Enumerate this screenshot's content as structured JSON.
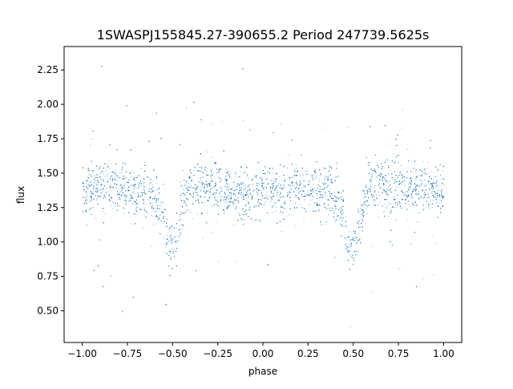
{
  "chart_data": {
    "type": "scatter",
    "title": "1SWASPJ155845.27-390655.2 Period 247739.5625s",
    "xlabel": "phase",
    "ylabel": "flux",
    "xlim": [
      -1.1,
      1.1
    ],
    "ylim": [
      0.27,
      2.42
    ],
    "x_ticks": [
      -1.0,
      -0.75,
      -0.5,
      -0.25,
      0.0,
      0.25,
      0.5,
      0.75,
      1.0
    ],
    "x_tick_labels": [
      "−1.00",
      "−0.75",
      "−0.50",
      "−0.25",
      "0.00",
      "0.25",
      "0.50",
      "0.75",
      "1.00"
    ],
    "y_ticks": [
      0.5,
      0.75,
      1.0,
      1.25,
      1.5,
      1.75,
      2.0,
      2.25
    ],
    "y_tick_labels": [
      "0.50",
      "0.75",
      "1.00",
      "1.25",
      "1.50",
      "1.75",
      "2.00",
      "2.25"
    ],
    "grid": false,
    "legend": "none",
    "color": "#1f77b4",
    "series": [
      {
        "x": [
          -1.0,
          -0.95,
          -0.9,
          -0.85,
          -0.8,
          -0.75,
          -0.7,
          -0.65,
          -0.6,
          -0.56,
          -0.54,
          -0.52,
          -0.5,
          -0.48,
          -0.46,
          -0.44,
          -0.42,
          -0.4,
          -0.35,
          -0.3,
          -0.25,
          -0.2,
          -0.15,
          -0.1,
          -0.05,
          0.0,
          0.05,
          0.1,
          0.15,
          0.2,
          0.25,
          0.3,
          0.35,
          0.4,
          0.44,
          0.46,
          0.48,
          0.5,
          0.52,
          0.54,
          0.56,
          0.58,
          0.6,
          0.65,
          0.7,
          0.75,
          0.8,
          0.85,
          0.9,
          0.95,
          1.0
        ],
        "y": [
          1.38,
          1.39,
          1.4,
          1.42,
          1.41,
          1.39,
          1.38,
          1.37,
          1.35,
          1.2,
          1.08,
          1.0,
          0.97,
          1.02,
          1.15,
          1.3,
          1.38,
          1.4,
          1.41,
          1.41,
          1.4,
          1.39,
          1.38,
          1.37,
          1.37,
          1.37,
          1.37,
          1.38,
          1.39,
          1.41,
          1.4,
          1.39,
          1.38,
          1.35,
          1.2,
          1.06,
          0.99,
          0.97,
          1.04,
          1.2,
          1.32,
          1.38,
          1.4,
          1.41,
          1.41,
          1.41,
          1.4,
          1.4,
          1.39,
          1.38,
          1.37
        ]
      }
    ]
  }
}
